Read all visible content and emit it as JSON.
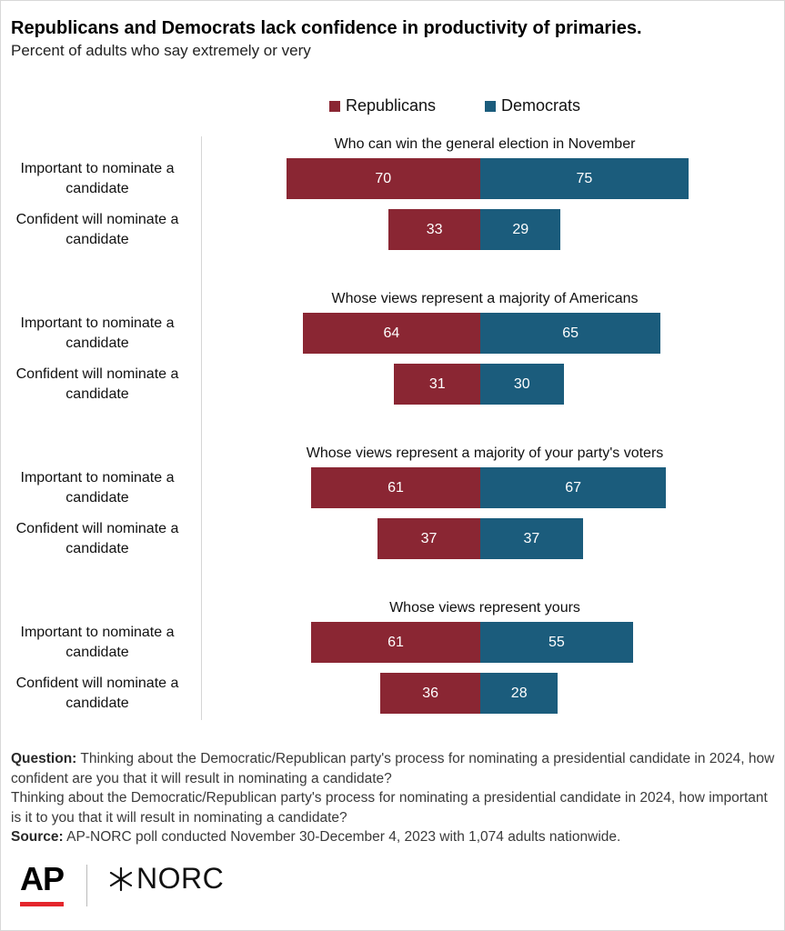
{
  "title": "Republicans and Democrats lack confidence in productivity of primaries.",
  "subtitle": "Percent of adults who say extremely or very",
  "legend": {
    "rep": "Republicans",
    "dem": "Democrats"
  },
  "colors": {
    "rep": "#8a2633",
    "dem": "#1b5c7c"
  },
  "chart_data": {
    "type": "bar",
    "orientation": "diverging-horizontal",
    "series": [
      {
        "name": "Republicans",
        "color": "#8a2633"
      },
      {
        "name": "Democrats",
        "color": "#1b5c7c"
      }
    ],
    "groups": [
      {
        "title": "Who can win the general election in November",
        "rows": [
          {
            "label": "Important to nominate a candidate",
            "rep": 70,
            "dem": 75
          },
          {
            "label": "Confident will nominate a candidate",
            "rep": 33,
            "dem": 29
          }
        ]
      },
      {
        "title": "Whose views represent a majority of Americans",
        "rows": [
          {
            "label": "Important to nominate a candidate",
            "rep": 64,
            "dem": 65
          },
          {
            "label": "Confident will nominate a candidate",
            "rep": 31,
            "dem": 30
          }
        ]
      },
      {
        "title": "Whose views represent a majority of your party's voters",
        "rows": [
          {
            "label": "Important to nominate a candidate",
            "rep": 61,
            "dem": 67
          },
          {
            "label": "Confident will nominate a candidate",
            "rep": 37,
            "dem": 37
          }
        ]
      },
      {
        "title": "Whose views represent yours",
        "rows": [
          {
            "label": "Important to nominate a candidate",
            "rep": 61,
            "dem": 55
          },
          {
            "label": "Confident will nominate a candidate",
            "rep": 36,
            "dem": 28
          }
        ]
      }
    ]
  },
  "notes": {
    "question_label": "Question:",
    "question_1": "Thinking about the Democratic/Republican party's process for nominating a presidential candidate in 2024, how confident are you that it will result in nominating a candidate?",
    "question_2": "Thinking about the Democratic/Republican party's process for nominating a presidential candidate in 2024, how important is it to you that it will result in nominating a candidate?",
    "source_label": "Source:",
    "source": "AP-NORC poll conducted November 30-December 4, 2023 with 1,074 adults nationwide."
  },
  "logos": {
    "ap": "AP",
    "norc": "NORC"
  }
}
